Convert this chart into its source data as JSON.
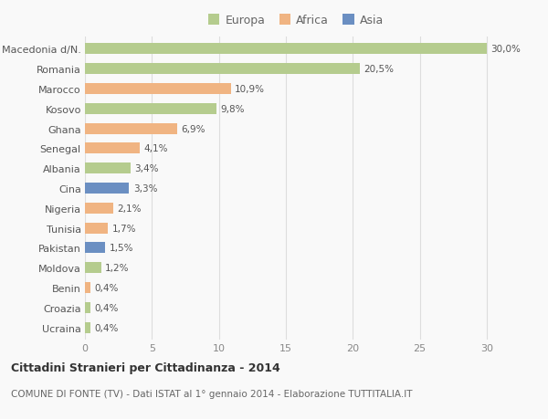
{
  "countries": [
    "Macedonia d/N.",
    "Romania",
    "Marocco",
    "Kosovo",
    "Ghana",
    "Senegal",
    "Albania",
    "Cina",
    "Nigeria",
    "Tunisia",
    "Pakistan",
    "Moldova",
    "Benin",
    "Croazia",
    "Ucraina"
  ],
  "values": [
    30.0,
    20.5,
    10.9,
    9.8,
    6.9,
    4.1,
    3.4,
    3.3,
    2.1,
    1.7,
    1.5,
    1.2,
    0.4,
    0.4,
    0.4
  ],
  "labels": [
    "30,0%",
    "20,5%",
    "10,9%",
    "9,8%",
    "6,9%",
    "4,1%",
    "3,4%",
    "3,3%",
    "2,1%",
    "1,7%",
    "1,5%",
    "1,2%",
    "0,4%",
    "0,4%",
    "0,4%"
  ],
  "continents": [
    "Europa",
    "Europa",
    "Africa",
    "Europa",
    "Africa",
    "Africa",
    "Europa",
    "Asia",
    "Africa",
    "Africa",
    "Asia",
    "Europa",
    "Africa",
    "Europa",
    "Europa"
  ],
  "colors": {
    "Europa": "#b5cc8e",
    "Africa": "#f0b482",
    "Asia": "#6b8fc2"
  },
  "legend_order": [
    "Europa",
    "Africa",
    "Asia"
  ],
  "xlim": [
    0,
    31.5
  ],
  "xticks": [
    0,
    5,
    10,
    15,
    20,
    25,
    30
  ],
  "title": "Cittadini Stranieri per Cittadinanza - 2014",
  "subtitle": "COMUNE DI FONTE (TV) - Dati ISTAT al 1° gennaio 2014 - Elaborazione TUTTITALIA.IT",
  "bg_color": "#f9f9f9",
  "grid_color": "#dddddd",
  "bar_height": 0.55
}
